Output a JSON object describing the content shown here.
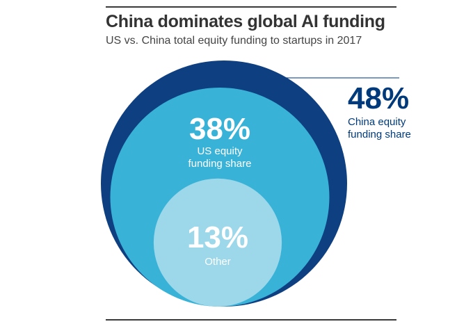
{
  "chart_data": {
    "type": "nested-circles",
    "title": "China dominates global AI funding",
    "subtitle": "US vs. China total equity funding to startups in 2017",
    "series": [
      {
        "name": "China",
        "value": 48,
        "value_label": "48%",
        "label_lines": [
          "China equity",
          "funding share"
        ],
        "color": "#0e3f80"
      },
      {
        "name": "US",
        "value": 38,
        "value_label": "38%",
        "label_lines": [
          "US equity",
          "funding share"
        ],
        "color": "#39b2d8"
      },
      {
        "name": "Other",
        "value": 13,
        "value_label": "13%",
        "label_lines": [
          "Other"
        ],
        "color": "#9dd7ea"
      }
    ]
  }
}
